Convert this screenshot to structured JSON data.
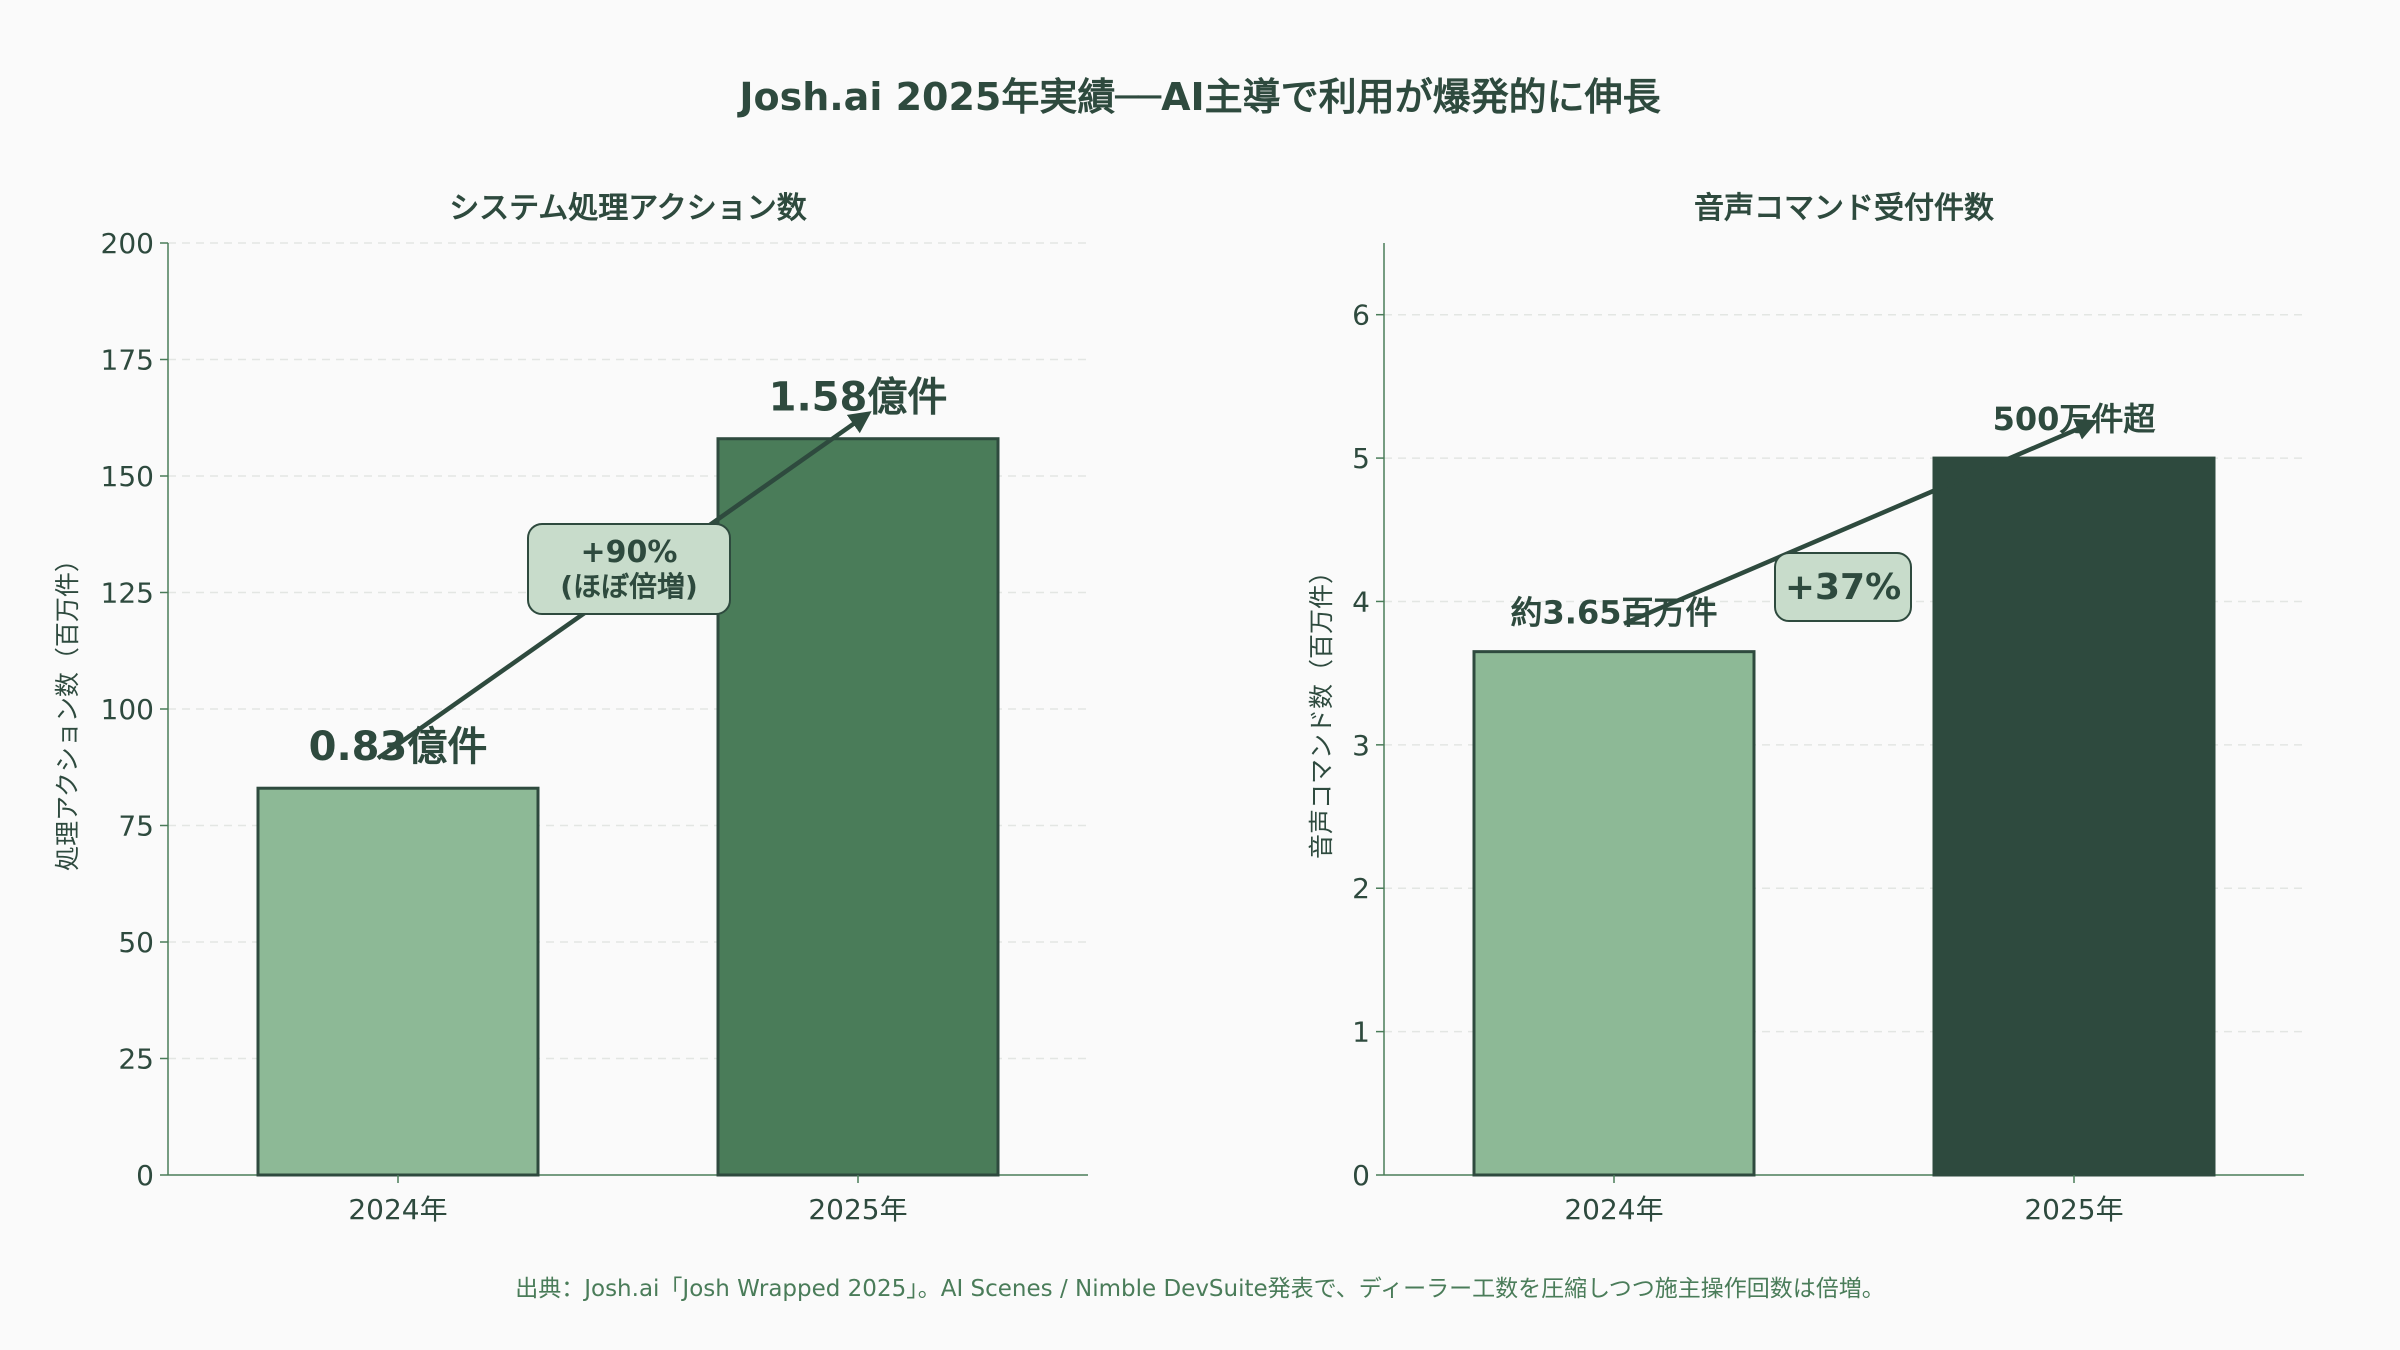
{
  "title": "Josh.ai 2025年実績──AI主導で利用が爆発的に伸長",
  "source": "出典：Josh.ai「Josh Wrapped 2025」。AI Scenes / Nimble DevSuite発表で、ディーラー工数を圧縮しつつ施主操作回数は倍増。",
  "colors": {
    "light": "#8db996",
    "mid": "#4a7c59",
    "dark": "#2e4a3e",
    "badge": "#c8dccb"
  },
  "chart_data": [
    {
      "type": "bar",
      "title": "システム処理アクション数",
      "ylabel": "処理アクション数（百万件）",
      "categories": [
        "2024年",
        "2025年"
      ],
      "values": [
        83,
        158
      ],
      "value_labels": [
        "0.83億件",
        "1.58億件"
      ],
      "ylim": [
        0,
        200
      ],
      "yticks": [
        0,
        25,
        50,
        75,
        100,
        125,
        150,
        175,
        200
      ],
      "bar_colors": [
        "#8db996",
        "#4a7c59"
      ],
      "annotation": {
        "line1": "+90%",
        "line2": "(ほぼ倍増)"
      },
      "grid": true
    },
    {
      "type": "bar",
      "title": "音声コマンド受付件数",
      "ylabel": "音声コマンド数（百万件）",
      "categories": [
        "2024年",
        "2025年"
      ],
      "values": [
        3.65,
        5.0
      ],
      "value_labels": [
        "約3.65百万件",
        "500万件超"
      ],
      "ylim": [
        0,
        6.5
      ],
      "yticks": [
        0,
        1,
        2,
        3,
        4,
        5,
        6
      ],
      "bar_colors": [
        "#8db996",
        "#2e4a3e"
      ],
      "annotation": {
        "line1": "+37%"
      },
      "grid": true
    }
  ]
}
